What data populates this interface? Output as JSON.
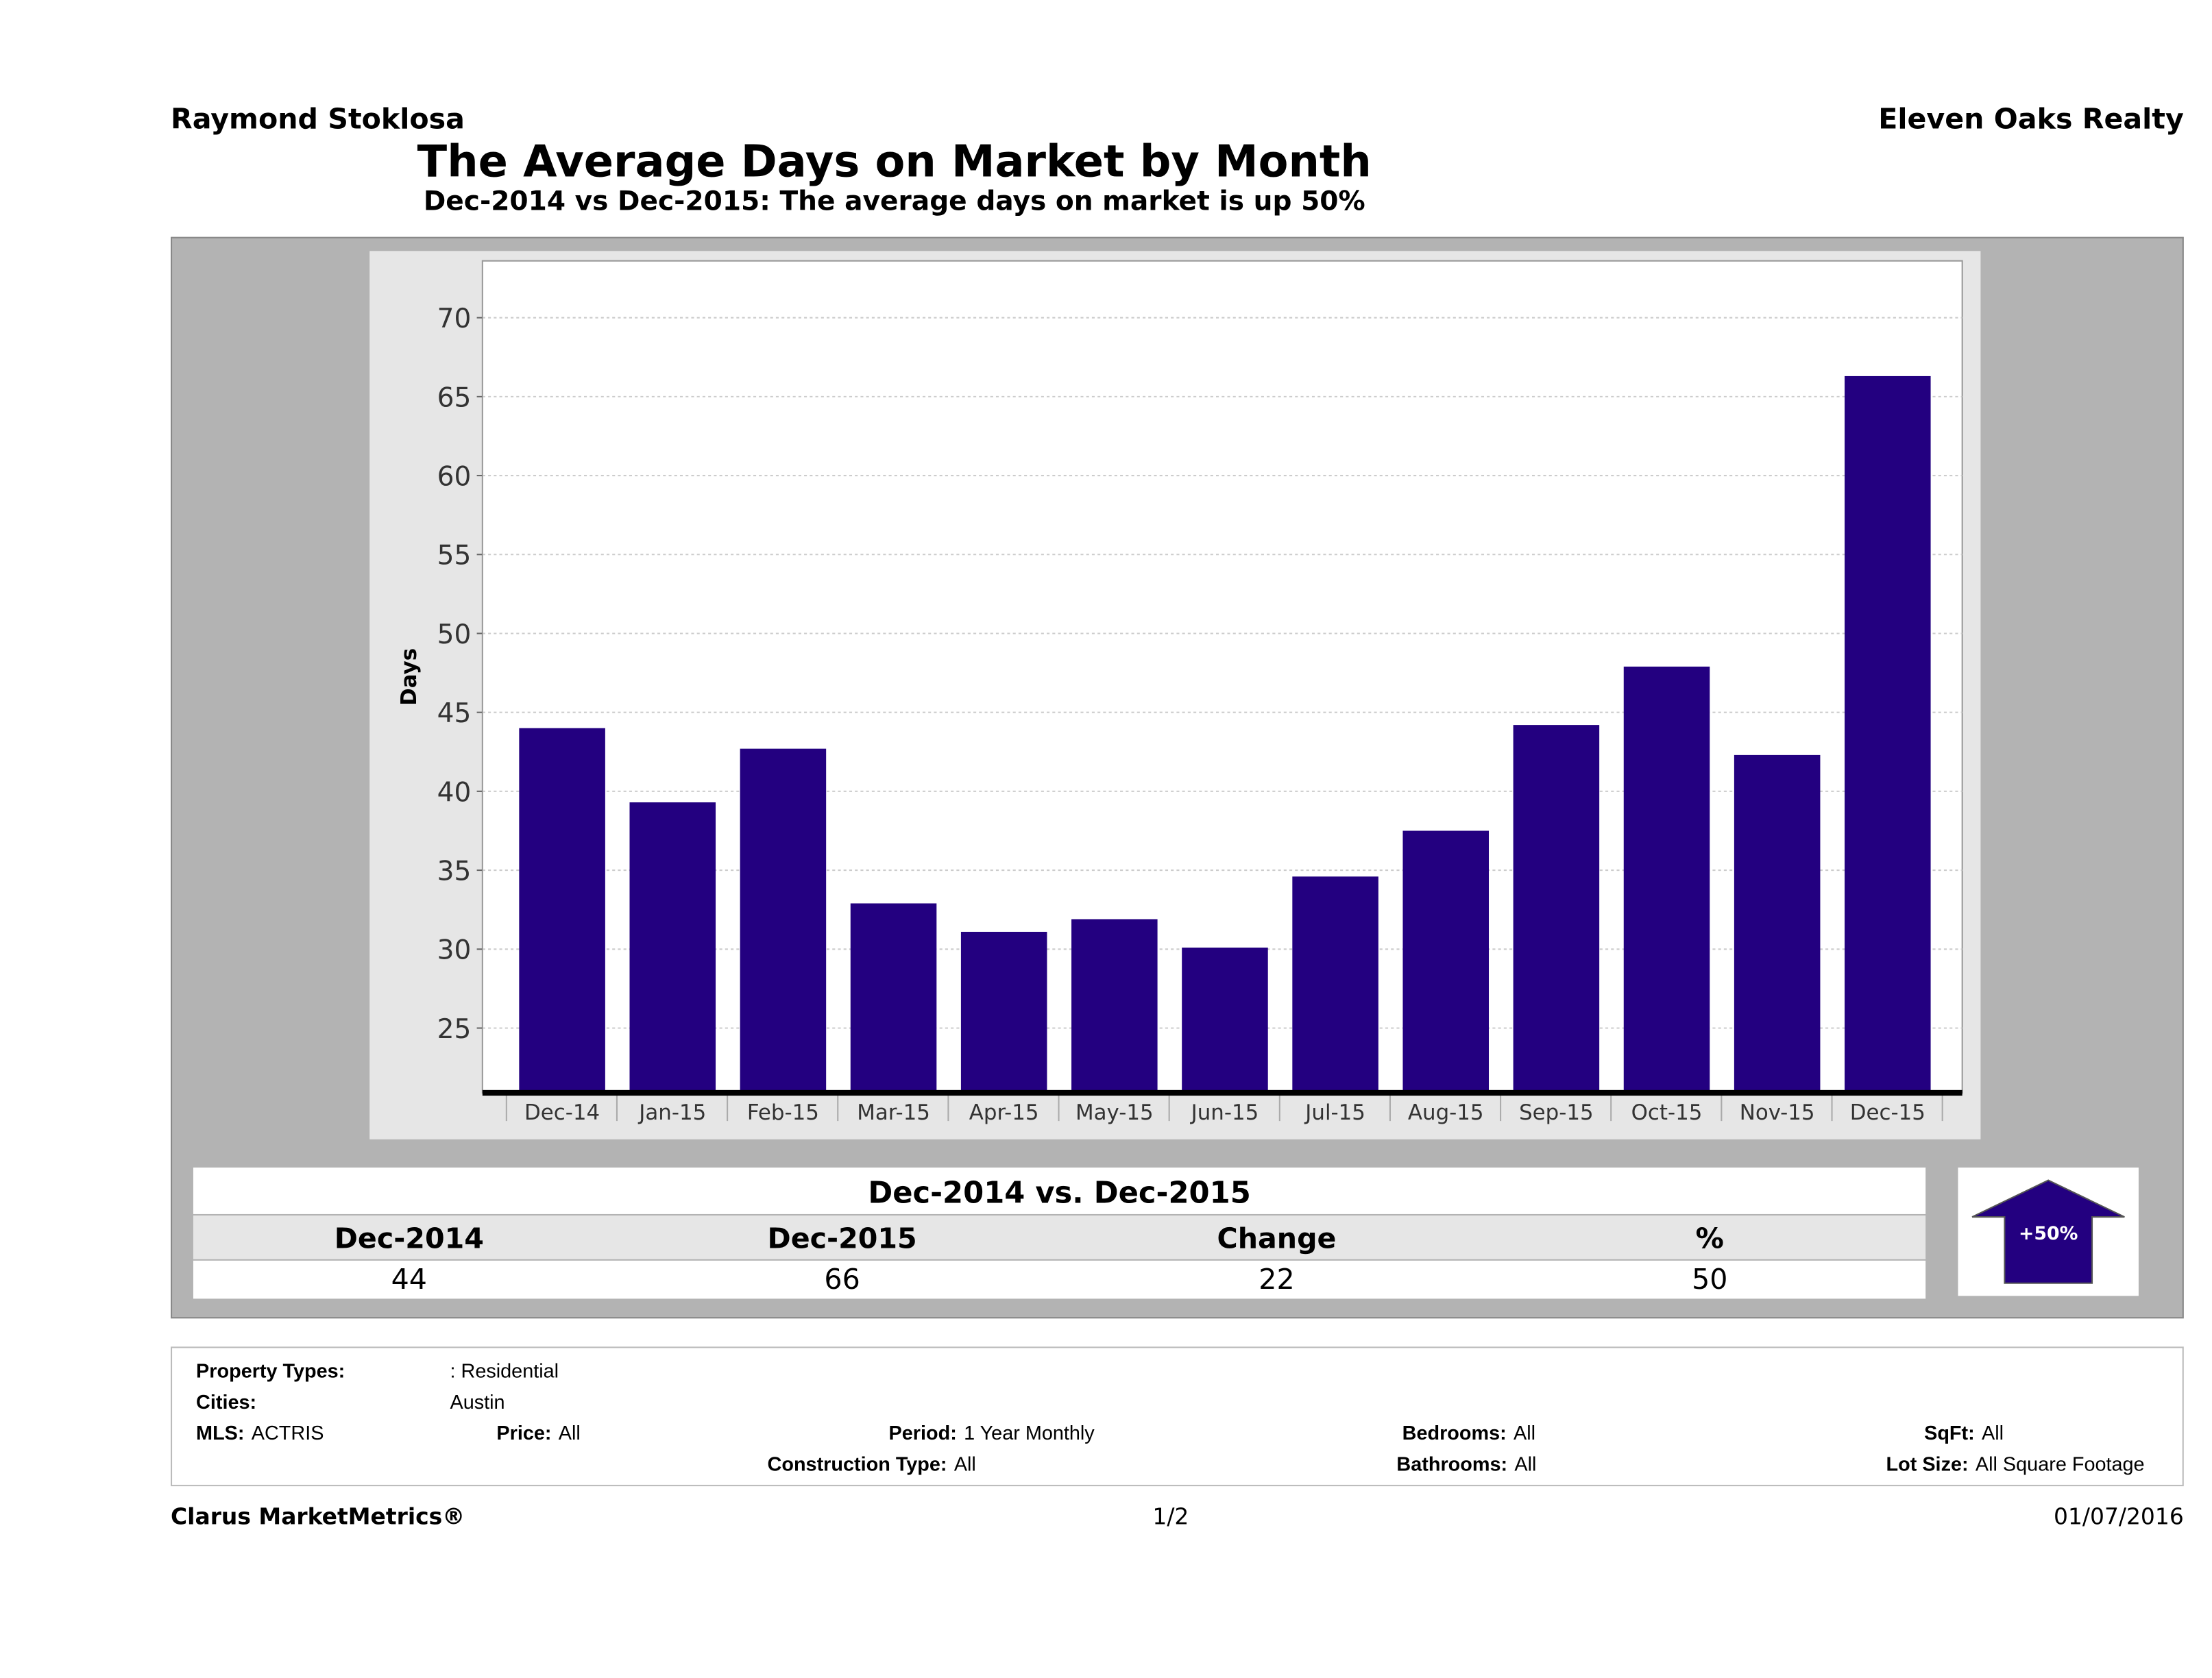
{
  "header": {
    "left": "Raymond Stoklosa",
    "right": "Eleven Oaks Realty",
    "title": "The Average Days on Market by Month",
    "subtitle": "Dec-2014 vs Dec-2015: The average days on market is up 50%"
  },
  "chart_data": {
    "type": "bar",
    "title": "",
    "xlabel": "",
    "ylabel": "Days",
    "categories": [
      "Dec-14",
      "Jan-15",
      "Feb-15",
      "Mar-15",
      "Apr-15",
      "May-15",
      "Jun-15",
      "Jul-15",
      "Aug-15",
      "Sep-15",
      "Oct-15",
      "Nov-15",
      "Dec-15"
    ],
    "values": [
      44,
      39.3,
      42.7,
      32.9,
      31.1,
      31.9,
      30.1,
      34.6,
      37.5,
      44.2,
      47.9,
      42.3,
      66.3
    ],
    "yticks": [
      25,
      30,
      35,
      40,
      45,
      50,
      55,
      60,
      65,
      70
    ],
    "ylim": [
      20.9,
      73.6
    ],
    "grid": true,
    "bar_color": "#230080"
  },
  "summary": {
    "title": "Dec-2014 vs. Dec-2015",
    "headers": [
      "Dec-2014",
      "Dec-2015",
      "Change",
      "%"
    ],
    "values": [
      "44",
      "66",
      "22",
      "50"
    ],
    "badge": "+50%",
    "badge_direction": "up",
    "badge_color": "#230080"
  },
  "info": {
    "property_types_label": "Property Types:",
    "property_types": ": Residential",
    "cities_label": "Cities:",
    "cities": "Austin",
    "mls_label": "MLS:",
    "mls": "ACTRIS",
    "price_label": "Price:",
    "price": "All",
    "period_label": "Period:",
    "period": "1 Year Monthly",
    "bedrooms_label": "Bedrooms:",
    "bedrooms": "All",
    "sqft_label": "SqFt:",
    "sqft": "All",
    "construction_label": "Construction Type:",
    "construction": "All",
    "bathrooms_label": "Bathrooms:",
    "bathrooms": "All",
    "lotsize_label": "Lot Size:",
    "lotsize": "All Square Footage"
  },
  "footer": {
    "brand": "Clarus MarketMetrics®",
    "page": "1/2",
    "date": "01/07/2016"
  }
}
